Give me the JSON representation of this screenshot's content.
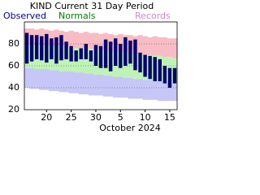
{
  "chart_data": {
    "type": "range-bar",
    "title": "KIND Current 31 Day Period",
    "x_label": "October 2024",
    "categories": [
      null,
      null,
      null,
      null,
      "20",
      null,
      null,
      null,
      null,
      "25",
      null,
      null,
      null,
      null,
      "30",
      null,
      null,
      null,
      null,
      "5",
      null,
      null,
      null,
      null,
      "10",
      null,
      null,
      null,
      null,
      "15",
      null
    ],
    "series": [
      {
        "name": "Observed",
        "color": "#00006e",
        "legend_color": "#00008b",
        "high": [
          90,
          88,
          88,
          87,
          89,
          85,
          86,
          88,
          82,
          78,
          74,
          76,
          80,
          74,
          79,
          78,
          84,
          82,
          85,
          80,
          86,
          83,
          84,
          72,
          70,
          69,
          68,
          66,
          60,
          58,
          58
        ],
        "low": [
          62,
          64,
          66,
          65,
          63,
          66,
          62,
          65,
          66,
          64,
          64,
          66,
          66,
          64,
          60,
          58,
          58,
          55,
          60,
          58,
          60,
          62,
          56,
          54,
          50,
          48,
          46,
          46,
          44,
          40,
          44
        ]
      },
      {
        "name": "Normals",
        "color": "#bff3b6",
        "legend_color": "#008000",
        "high": [
          80,
          80,
          79,
          79,
          79,
          78,
          78,
          78,
          77,
          77,
          76,
          76,
          76,
          75,
          75,
          74,
          74,
          73,
          73,
          73,
          72,
          72,
          71,
          71,
          70,
          70,
          69,
          69,
          68,
          68,
          67
        ],
        "low": [
          58,
          58,
          57,
          57,
          57,
          56,
          56,
          55,
          55,
          55,
          54,
          54,
          53,
          53,
          52,
          52,
          51,
          51,
          50,
          50,
          49,
          49,
          48,
          48,
          47,
          47,
          46,
          46,
          45,
          45,
          45
        ]
      },
      {
        "name": "Records",
        "color": "#f7bcc4",
        "low_color": "#c6c6f7",
        "legend_color": "#cc88cc",
        "high": [
          94,
          94,
          93,
          94,
          93,
          92,
          93,
          92,
          91,
          92,
          91,
          90,
          91,
          90,
          90,
          89,
          90,
          89,
          88,
          89,
          88,
          88,
          87,
          88,
          87,
          86,
          87,
          86,
          86,
          85,
          85
        ],
        "low": [
          40,
          39,
          39,
          38,
          38,
          37,
          37,
          36,
          36,
          35,
          35,
          34,
          34,
          33,
          33,
          33,
          32,
          32,
          31,
          31,
          31,
          30,
          30,
          30,
          29,
          29,
          29,
          28,
          28,
          28,
          28
        ]
      }
    ],
    "ylim": [
      20,
      100
    ],
    "yticks": [
      20,
      40,
      60,
      80
    ],
    "grid": true
  }
}
